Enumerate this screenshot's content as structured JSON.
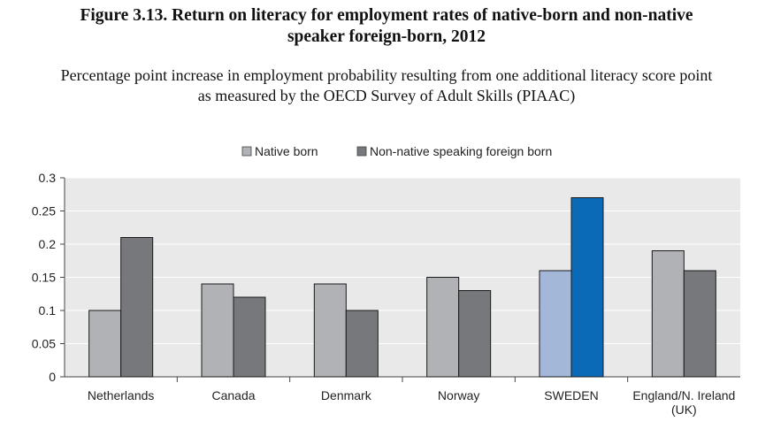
{
  "figure": {
    "title_lines": [
      "Figure 3.13. Return on literacy for employment rates of native-born and non-native",
      "speaker foreign-born, 2012"
    ],
    "subtitle_lines": [
      "Percentage point increase in employment probability resulting from one additional literacy score point",
      "as measured by the OECD Survey of Adult Skills (PIAAC)"
    ]
  },
  "chart_data": {
    "type": "bar",
    "categories": [
      "Netherlands",
      "Canada",
      "Denmark",
      "Norway",
      "SWEDEN",
      "England/N. Ireland (UK)"
    ],
    "category_label_lines": [
      [
        "Netherlands"
      ],
      [
        "Canada"
      ],
      [
        "Denmark"
      ],
      [
        "Norway"
      ],
      [
        "SWEDEN"
      ],
      [
        "England/N. Ireland",
        "(UK)"
      ]
    ],
    "series": [
      {
        "name": "Native born",
        "values": [
          0.1,
          0.14,
          0.14,
          0.15,
          0.16,
          0.19
        ],
        "color": "#b1b2b6"
      },
      {
        "name": "Non-native speaking foreign born",
        "values": [
          0.21,
          0.12,
          0.1,
          0.13,
          0.27,
          0.16
        ],
        "color": "#77787c"
      }
    ],
    "highlight": {
      "category": "SWEDEN",
      "colors": [
        "#a3b7d9",
        "#0b6ab7"
      ]
    },
    "ylim": [
      0,
      0.3
    ],
    "yticks": [
      "0",
      "0.05",
      "0.1",
      "0.15",
      "0.2",
      "0.25",
      "0.3"
    ],
    "grid": true,
    "legend_position": "top-center",
    "xlabel": "",
    "ylabel": "",
    "plot_background": "#e9e9e9",
    "grid_color": "#ffffff"
  }
}
